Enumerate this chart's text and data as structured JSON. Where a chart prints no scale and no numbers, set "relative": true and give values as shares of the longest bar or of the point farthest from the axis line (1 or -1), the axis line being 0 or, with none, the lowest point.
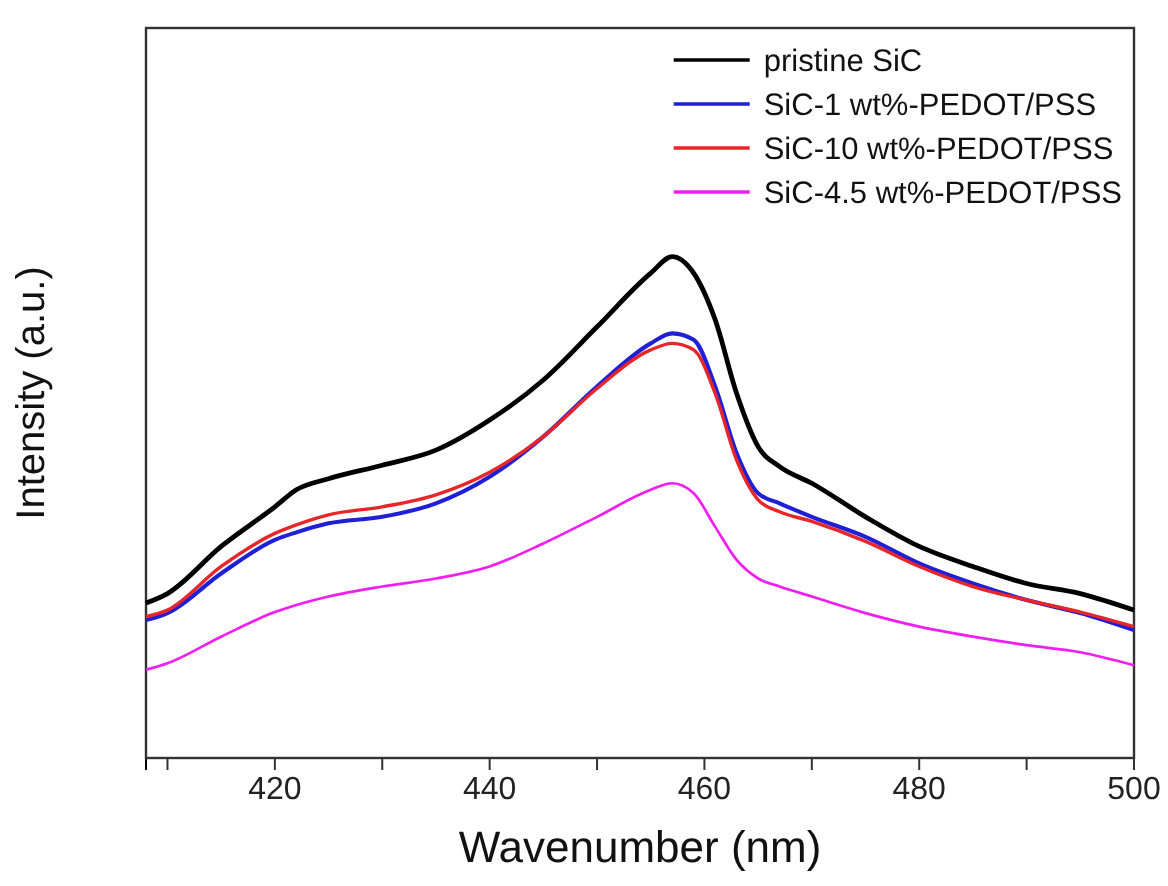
{
  "chart_data": {
    "type": "line",
    "relative": true,
    "xlabel": "Wavenumber (nm)",
    "ylabel": "Intensity (a.u.)",
    "xlim": [
      408,
      500
    ],
    "xticks": [
      {
        "value": 410,
        "label": null
      },
      420,
      {
        "value": 430,
        "label": null
      },
      440,
      {
        "value": 450,
        "label": null
      },
      460,
      {
        "value": 470,
        "label": null
      },
      480,
      {
        "value": 490,
        "label": null
      },
      500
    ],
    "x": [
      408,
      410,
      415,
      420,
      422,
      425,
      430,
      435,
      440,
      445,
      450,
      455,
      457,
      459,
      461,
      463,
      465,
      467,
      470,
      475,
      480,
      485,
      490,
      495,
      500
    ],
    "series": [
      {
        "name": "pristine SiC",
        "color": "#000000",
        "values": [
          0.309,
          0.328,
          0.422,
          0.501,
          0.535,
          0.557,
          0.584,
          0.614,
          0.674,
          0.754,
          0.86,
          0.967,
          1.0,
          0.967,
          0.874,
          0.727,
          0.621,
          0.581,
          0.548,
          0.481,
          0.422,
          0.382,
          0.348,
          0.328,
          0.295
        ]
      },
      {
        "name": "SiC-1 wt%-PEDOT/PSS",
        "color": "#1f1fd6",
        "values": [
          0.275,
          0.289,
          0.368,
          0.435,
          0.45,
          0.468,
          0.481,
          0.508,
          0.561,
          0.641,
          0.741,
          0.827,
          0.847,
          0.834,
          0.741,
          0.608,
          0.528,
          0.508,
          0.481,
          0.441,
          0.388,
          0.348,
          0.315,
          0.289,
          0.255
        ]
      },
      {
        "name": "SiC-10 wt%-PEDOT/PSS",
        "color": "#e8262a",
        "values": [
          0.282,
          0.295,
          0.382,
          0.448,
          0.465,
          0.485,
          0.501,
          0.525,
          0.57,
          0.641,
          0.737,
          0.814,
          0.827,
          0.814,
          0.727,
          0.594,
          0.515,
          0.491,
          0.472,
          0.432,
          0.382,
          0.342,
          0.315,
          0.291,
          0.262
        ]
      },
      {
        "name": "SiC-4.5 wt%-PEDOT/PSS",
        "color": "#f01ef0",
        "values": [
          0.176,
          0.189,
          0.242,
          0.291,
          0.305,
          0.322,
          0.342,
          0.358,
          0.382,
          0.428,
          0.481,
          0.535,
          0.548,
          0.528,
          0.461,
          0.395,
          0.358,
          0.342,
          0.322,
          0.289,
          0.262,
          0.242,
          0.225,
          0.211,
          0.185
        ]
      }
    ],
    "legend": "top right",
    "grid": false,
    "marker": "none",
    "line_style": "solid"
  }
}
